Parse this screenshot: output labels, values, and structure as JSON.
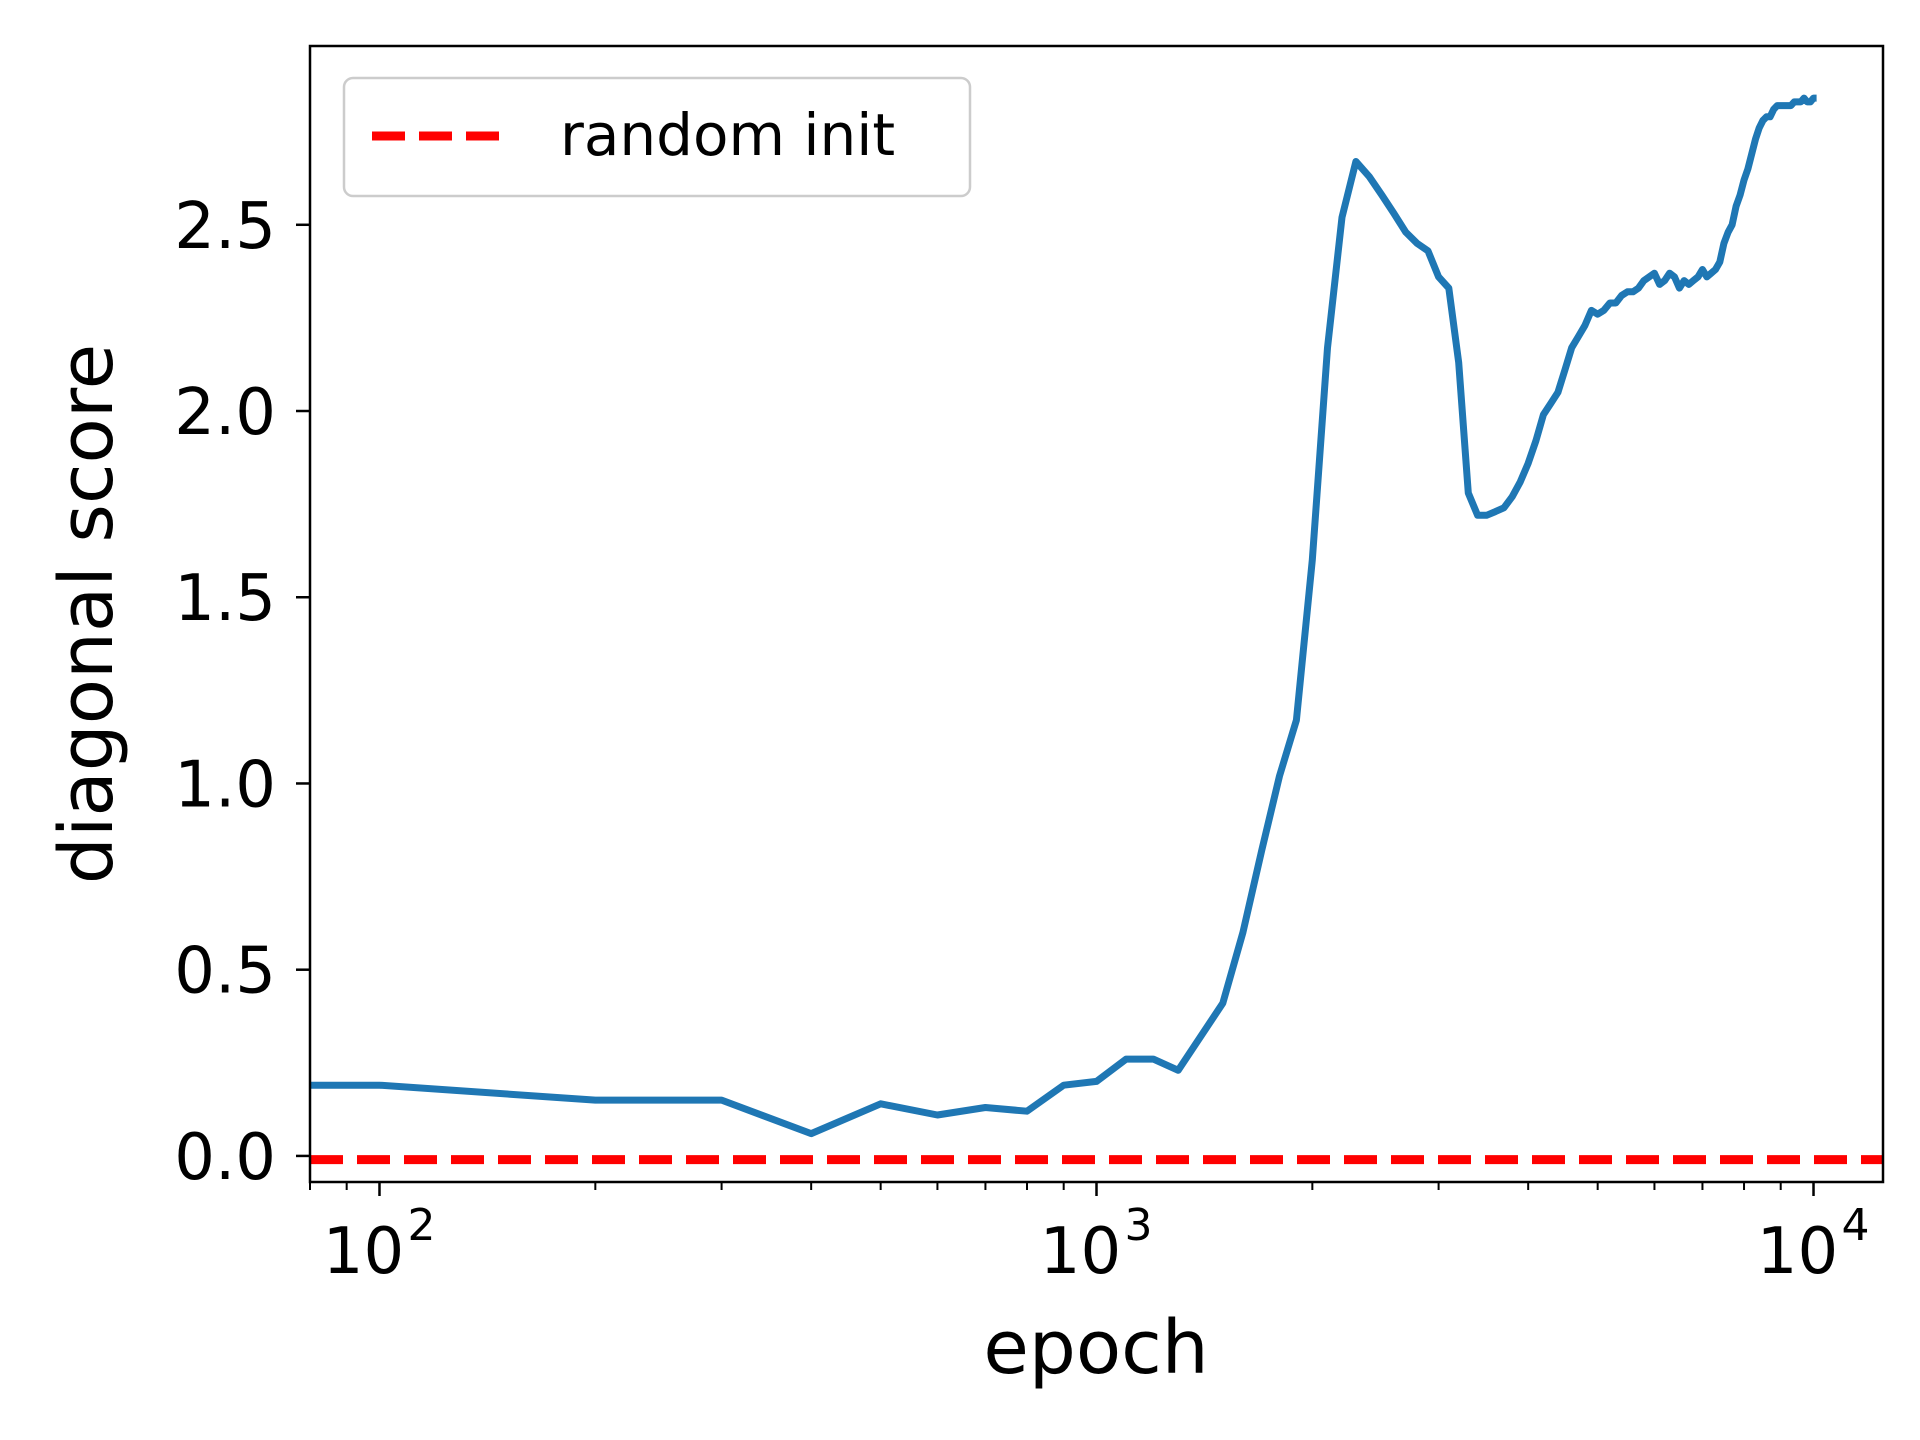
{
  "chart_data": {
    "type": "line",
    "title": "",
    "xlabel": "epoch",
    "ylabel": "diagonal score",
    "x_scale": "log",
    "xlim": [
      80,
      12500
    ],
    "ylim": [
      -0.07,
      2.98
    ],
    "x_major_ticks": [
      {
        "value": 100,
        "base": "10",
        "exp": "2"
      },
      {
        "value": 1000,
        "base": "10",
        "exp": "3"
      },
      {
        "value": 10000,
        "base": "10",
        "exp": "4"
      }
    ],
    "x_minor_ticks": [
      80,
      90,
      200,
      300,
      400,
      500,
      600,
      700,
      800,
      900,
      2000,
      3000,
      4000,
      5000,
      6000,
      7000,
      8000,
      9000
    ],
    "y_ticks": [
      {
        "value": 0.0,
        "label": "0.0"
      },
      {
        "value": 0.5,
        "label": "0.5"
      },
      {
        "value": 1.0,
        "label": "1.0"
      },
      {
        "value": 1.5,
        "label": "1.5"
      },
      {
        "value": 2.0,
        "label": "2.0"
      },
      {
        "value": 2.5,
        "label": "2.5"
      }
    ],
    "grid": false,
    "legend": {
      "placement": "upper left",
      "entries": [
        {
          "label": "random init",
          "color": "#ff0000",
          "style": "dashed"
        }
      ]
    },
    "reference_lines": [
      {
        "name": "random init",
        "y": -0.01,
        "color": "#ff0000",
        "style": "dashed"
      }
    ],
    "series": [
      {
        "color": "#1f77b4",
        "x": [
          80,
          100,
          200,
          300,
          400,
          500,
          600,
          700,
          800,
          900,
          1000,
          1100,
          1200,
          1300,
          1500,
          1600,
          1700,
          1800,
          1900,
          2000,
          2100,
          2200,
          2300,
          2400,
          2500,
          2600,
          2700,
          2800,
          2900,
          3000,
          3100,
          3200,
          3300,
          3400,
          3500,
          3600,
          3700,
          3800,
          3900,
          4000,
          4100,
          4200,
          4300,
          4400,
          4500,
          4600,
          4700,
          4800,
          4900,
          5000,
          5100,
          5200,
          5300,
          5400,
          5500,
          5600,
          5700,
          5800,
          5900,
          6000,
          6100,
          6200,
          6300,
          6400,
          6500,
          6600,
          6700,
          6800,
          6900,
          7000,
          7100,
          7200,
          7300,
          7400,
          7500,
          7600,
          7700,
          7800,
          7900,
          8000,
          8100,
          8200,
          8300,
          8400,
          8500,
          8600,
          8700,
          8800,
          8900,
          9000,
          9100,
          9200,
          9300,
          9400,
          9500,
          9600,
          9700,
          9800,
          9900,
          10000,
          10100
        ],
        "y": [
          0.19,
          0.19,
          0.15,
          0.15,
          0.06,
          0.14,
          0.11,
          0.13,
          0.12,
          0.19,
          0.2,
          0.26,
          0.26,
          0.23,
          0.41,
          0.6,
          0.82,
          1.02,
          1.17,
          1.6,
          2.17,
          2.52,
          2.67,
          2.63,
          2.58,
          2.53,
          2.48,
          2.45,
          2.43,
          2.36,
          2.33,
          2.13,
          1.78,
          1.72,
          1.72,
          1.73,
          1.74,
          1.77,
          1.81,
          1.86,
          1.92,
          1.99,
          2.02,
          2.05,
          2.11,
          2.17,
          2.2,
          2.23,
          2.27,
          2.26,
          2.27,
          2.29,
          2.29,
          2.31,
          2.32,
          2.32,
          2.33,
          2.35,
          2.36,
          2.37,
          2.34,
          2.35,
          2.37,
          2.36,
          2.33,
          2.35,
          2.34,
          2.35,
          2.36,
          2.38,
          2.36,
          2.37,
          2.38,
          2.4,
          2.45,
          2.48,
          2.5,
          2.55,
          2.58,
          2.62,
          2.65,
          2.69,
          2.73,
          2.76,
          2.78,
          2.79,
          2.79,
          2.81,
          2.82,
          2.82,
          2.82,
          2.82,
          2.82,
          2.83,
          2.83,
          2.83,
          2.84,
          2.83,
          2.83,
          2.84,
          2.84
        ]
      }
    ]
  }
}
